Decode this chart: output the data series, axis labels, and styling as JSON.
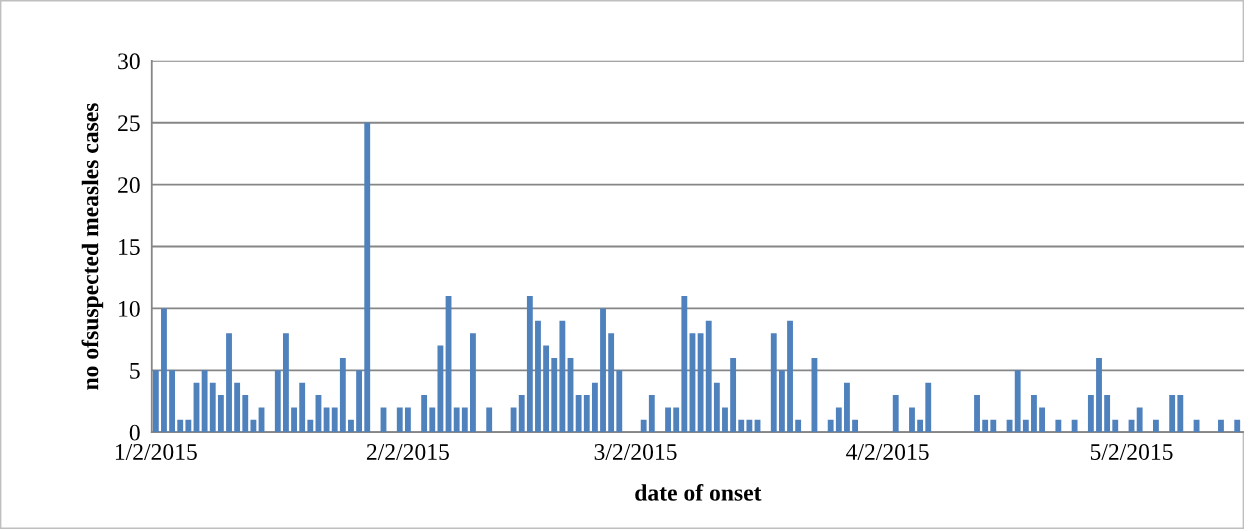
{
  "chart_data": {
    "type": "bar",
    "xlabel": "date of onset",
    "ylabel": "no ofsuspected measles cases",
    "x": [
      "2015-01-02",
      "2015-01-03",
      "2015-01-04",
      "2015-01-05",
      "2015-01-06",
      "2015-01-07",
      "2015-01-08",
      "2015-01-09",
      "2015-01-10",
      "2015-01-11",
      "2015-01-12",
      "2015-01-13",
      "2015-01-14",
      "2015-01-15",
      "2015-01-17",
      "2015-01-18",
      "2015-01-19",
      "2015-01-20",
      "2015-01-21",
      "2015-01-22",
      "2015-01-23",
      "2015-01-24",
      "2015-01-25",
      "2015-01-26",
      "2015-01-27",
      "2015-01-28",
      "2015-01-30",
      "2015-02-01",
      "2015-02-02",
      "2015-02-04",
      "2015-02-05",
      "2015-02-06",
      "2015-02-07",
      "2015-02-08",
      "2015-02-09",
      "2015-02-10",
      "2015-02-12",
      "2015-02-15",
      "2015-02-16",
      "2015-02-17",
      "2015-02-18",
      "2015-02-19",
      "2015-02-20",
      "2015-02-21",
      "2015-02-22",
      "2015-02-23",
      "2015-02-24",
      "2015-02-25",
      "2015-02-26",
      "2015-02-27",
      "2015-02-28",
      "2015-03-03",
      "2015-03-04",
      "2015-03-06",
      "2015-03-07",
      "2015-03-08",
      "2015-03-09",
      "2015-03-10",
      "2015-03-11",
      "2015-03-12",
      "2015-03-13",
      "2015-03-14",
      "2015-03-15",
      "2015-03-16",
      "2015-03-17",
      "2015-03-19",
      "2015-03-20",
      "2015-03-21",
      "2015-03-22",
      "2015-03-24",
      "2015-03-26",
      "2015-03-27",
      "2015-03-28",
      "2015-03-29",
      "2015-04-03",
      "2015-04-05",
      "2015-04-06",
      "2015-04-07",
      "2015-04-13",
      "2015-04-14",
      "2015-04-15",
      "2015-04-17",
      "2015-04-18",
      "2015-04-19",
      "2015-04-20",
      "2015-04-21",
      "2015-04-23",
      "2015-04-25",
      "2015-04-27",
      "2015-04-28",
      "2015-04-29",
      "2015-04-30",
      "2015-05-02",
      "2015-05-03",
      "2015-05-05",
      "2015-05-07",
      "2015-05-08",
      "2015-05-10",
      "2015-05-13",
      "2015-05-15"
    ],
    "values": [
      5,
      10,
      5,
      1,
      1,
      4,
      5,
      4,
      3,
      8,
      4,
      3,
      1,
      2,
      5,
      8,
      2,
      4,
      1,
      3,
      2,
      2,
      6,
      1,
      5,
      25,
      2,
      2,
      2,
      3,
      2,
      7,
      11,
      2,
      2,
      8,
      2,
      2,
      3,
      11,
      9,
      7,
      6,
      9,
      6,
      3,
      3,
      4,
      10,
      8,
      5,
      1,
      3,
      2,
      2,
      11,
      8,
      8,
      9,
      4,
      2,
      6,
      1,
      1,
      1,
      8,
      5,
      9,
      1,
      6,
      1,
      2,
      4,
      1,
      3,
      2,
      1,
      4,
      3,
      1,
      1,
      1,
      5,
      1,
      3,
      2,
      1,
      1,
      3,
      6,
      3,
      1,
      1,
      2,
      1,
      3,
      3,
      1,
      1,
      1
    ],
    "color": "#4f81bd",
    "xlim": [
      "2015-01-01T12:00",
      "2015-05-15T20:00"
    ],
    "xticks": [
      {
        "value": "2015-01-02",
        "label": "1/2/2015"
      },
      {
        "value": "2015-02-02",
        "label": "2/2/2015"
      },
      {
        "value": "2015-03-02",
        "label": "3/2/2015"
      },
      {
        "value": "2015-04-02",
        "label": "4/2/2015"
      },
      {
        "value": "2015-05-02",
        "label": "5/2/2015"
      }
    ],
    "ylim": [
      0,
      30
    ],
    "yticks": [
      0,
      5,
      10,
      15,
      20,
      25,
      30
    ],
    "grid": "y",
    "legend": false
  }
}
